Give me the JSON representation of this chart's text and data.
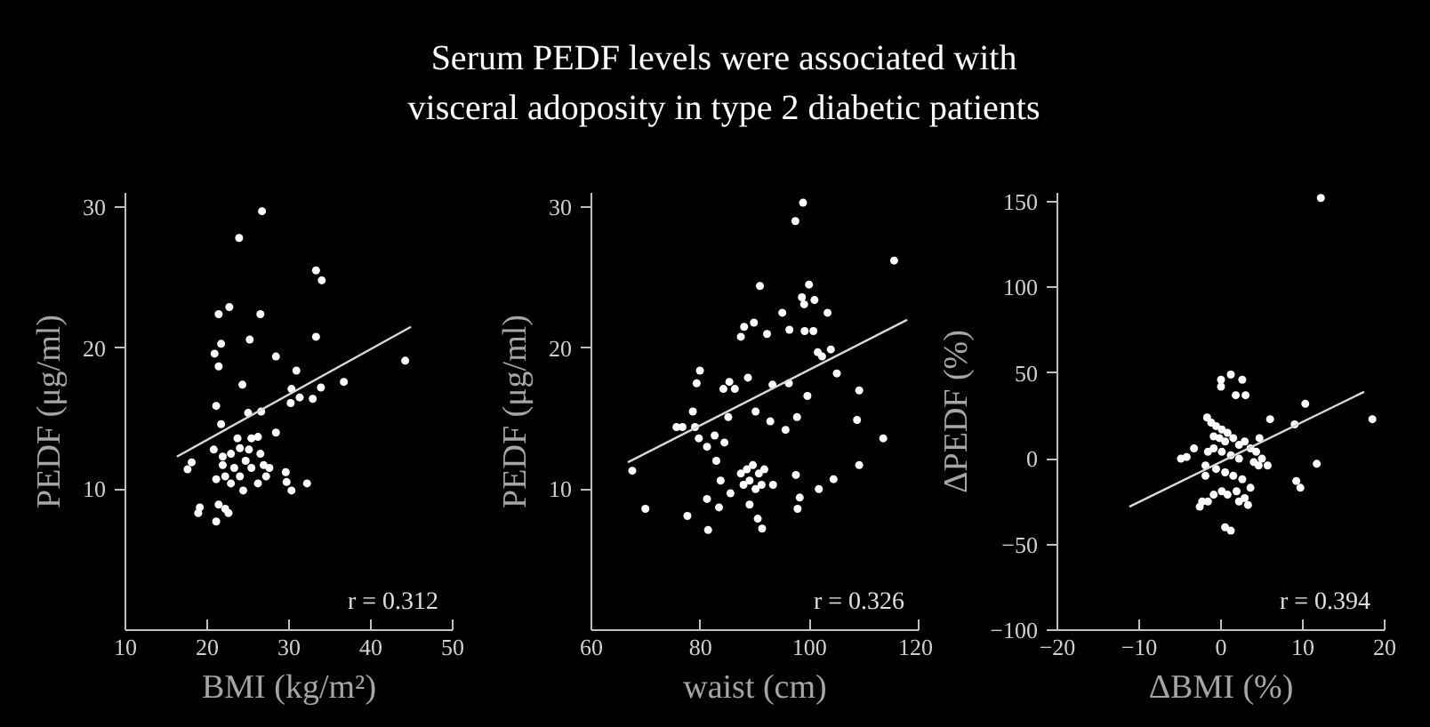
{
  "chart_data": [
    {
      "type": "other",
      "title": "Serum PEDF levels were associated with\nvisceral adoposity in type 2 diabetic patients"
    },
    {
      "type": "scatter",
      "xlabel": "BMI (kg/m²)",
      "ylabel": "PEDF (μg/ml)",
      "annotations": [
        "r = 0.312"
      ],
      "xlim": [
        10,
        50
      ],
      "ylim": [
        0,
        31
      ],
      "xticks": [
        10,
        20,
        30,
        40,
        50
      ],
      "yticks": [
        10,
        20,
        30
      ],
      "series": [
        {
          "marker": "circle",
          "color": "#ffffff",
          "x": [
            26.7,
            23.9,
            33.3,
            34.0,
            21.4,
            22.7,
            26.5,
            33.3,
            25.2,
            21.7,
            20.9,
            21.4,
            28.4,
            30.9,
            24.3,
            30.3,
            31.3,
            32.9,
            33.9,
            36.7,
            44.2,
            30.2,
            21.1,
            25.0,
            26.6,
            21.7,
            28.4,
            17.6,
            18.1,
            20.8,
            21.9,
            22.9,
            24.0,
            25.4,
            26.2,
            26.5,
            24.7,
            23.3,
            22.2,
            21.1,
            24.0,
            25.4,
            26.9,
            27.6,
            24.4,
            22.9,
            26.2,
            27.2,
            21.9,
            25.1,
            23.7,
            29.6,
            29.7,
            30.3,
            32.2,
            19.1,
            18.9,
            21.4,
            22.2,
            22.6,
            21.1
          ],
          "values": [
            29.7,
            27.8,
            25.5,
            24.8,
            22.4,
            22.9,
            22.4,
            20.8,
            20.6,
            20.3,
            19.6,
            18.7,
            19.4,
            18.4,
            17.4,
            17.1,
            16.5,
            16.4,
            17.2,
            17.6,
            19.1,
            16.1,
            15.9,
            15.4,
            15.5,
            14.6,
            14.0,
            11.4,
            11.9,
            12.8,
            12.3,
            12.5,
            12.9,
            13.6,
            13.7,
            12.5,
            12.0,
            11.5,
            10.9,
            10.7,
            10.9,
            11.5,
            11.7,
            11.5,
            9.9,
            10.4,
            10.4,
            10.9,
            11.7,
            12.8,
            13.6,
            11.2,
            10.5,
            9.9,
            10.4,
            8.7,
            8.3,
            8.9,
            8.6,
            8.3,
            7.7
          ]
        },
        {
          "type": "line",
          "color": "#d9d9d9",
          "x": [
            16.3,
            44.9
          ],
          "values": [
            12.3,
            21.5
          ]
        }
      ]
    },
    {
      "type": "scatter",
      "xlabel": "waist (cm)",
      "ylabel": "PEDF (μg/ml)",
      "annotations": [
        "r = 0.326"
      ],
      "xlim": [
        60,
        120
      ],
      "ylim": [
        0,
        31
      ],
      "xticks": [
        60,
        80,
        100,
        120
      ],
      "yticks": [
        10,
        20,
        30
      ],
      "series": [
        {
          "marker": "circle",
          "color": "#ffffff",
          "x": [
            98.8,
            97.4,
            115.5,
            90.9,
            99.9,
            98.6,
            99.0,
            100.9,
            95.0,
            103.3,
            88.0,
            89.8,
            92.2,
            96.3,
            99.1,
            100.7,
            87.4,
            101.5,
            102.3,
            103.9,
            105.0,
            79.9,
            79.3,
            85.3,
            86.3,
            88.7,
            84.2,
            93.2,
            96.2,
            99.6,
            109.1,
            78.6,
            75.6,
            76.7,
            79.0,
            85.1,
            90.1,
            97.7,
            92.8,
            95.6,
            108.7,
            79.7,
            82.6,
            84.4,
            81.2,
            82.9,
            113.5,
            67.5,
            109.1,
            87.4,
            88.5,
            89.6,
            90.7,
            91.7,
            87.9,
            89.0,
            91.2,
            90.1,
            93.3,
            85.5,
            83.7,
            97.5,
            104.4,
            101.7,
            81.2,
            83.4,
            89.0,
            98.2,
            97.8,
            90.5,
            91.3,
            69.9,
            77.6,
            81.4
          ],
          "values": [
            30.3,
            29.0,
            26.2,
            24.4,
            24.5,
            23.6,
            23.1,
            23.4,
            22.5,
            22.5,
            21.5,
            21.8,
            21.0,
            21.3,
            21.2,
            21.2,
            20.8,
            19.7,
            19.4,
            19.9,
            18.2,
            18.4,
            17.5,
            17.6,
            17.1,
            17.9,
            17.1,
            17.4,
            17.5,
            16.6,
            17.0,
            15.5,
            14.4,
            14.4,
            14.4,
            15.1,
            15.5,
            15.1,
            14.8,
            14.2,
            14.9,
            13.6,
            13.8,
            13.3,
            13.0,
            12.0,
            13.6,
            11.3,
            11.7,
            11.1,
            11.4,
            11.7,
            11.1,
            11.4,
            10.3,
            10.6,
            10.3,
            10.0,
            10.3,
            9.7,
            10.6,
            11.0,
            10.7,
            10.0,
            9.3,
            8.7,
            8.9,
            9.4,
            8.6,
            7.9,
            7.2,
            8.6,
            8.1,
            7.1
          ]
        },
        {
          "type": "line",
          "color": "#d9d9d9",
          "x": [
            66.7,
            117.9
          ],
          "values": [
            11.9,
            22.0
          ]
        }
      ]
    },
    {
      "type": "scatter",
      "xlabel": "ΔBMI (%)",
      "ylabel": "ΔPEDF (%)",
      "annotations": [
        "r = 0.394"
      ],
      "xlim": [
        -20,
        20
      ],
      "ylim": [
        -100,
        155
      ],
      "xticks": [
        -20,
        -10,
        0,
        10,
        20
      ],
      "yticks": [
        -100,
        -50,
        0,
        50,
        100,
        150
      ],
      "series": [
        {
          "marker": "circle",
          "color": "#ffffff",
          "x": [
            12.2,
            18.5,
            10.3,
            9.0,
            11.7,
            9.2,
            9.7,
            0.0,
            1.2,
            2.6,
            1.8,
            3.0,
            0.0,
            6.0,
            4.7,
            -1.7,
            -3.3,
            -4.9,
            -4.2,
            -1.2,
            -0.6,
            0.1,
            0.8,
            -0.9,
            -0.2,
            0.5,
            1.5,
            2.2,
            2.9,
            3.6,
            4.3,
            5.0,
            5.7,
            4.6,
            4.0,
            2.2,
            1.2,
            0.1,
            -0.9,
            -1.6,
            -1.9,
            -1.9,
            -0.6,
            0.5,
            1.5,
            2.6,
            3.6,
            2.9,
            1.9,
            0.8,
            0.1,
            -0.9,
            -1.6,
            -2.6,
            -2.3,
            2.2,
            3.3,
            0.5,
            1.2
          ],
          "values": [
            152,
            23,
            32,
            20,
            -3,
            -13,
            -17,
            46,
            49,
            46,
            37,
            37,
            42,
            23,
            12,
            24,
            6,
            0,
            1,
            21,
            19,
            17,
            15,
            13,
            12,
            10,
            12,
            8,
            10,
            6,
            4,
            0,
            -4,
            -4,
            -2,
            0,
            2,
            4,
            6,
            4,
            -4,
            -10,
            -6,
            -8,
            -10,
            -12,
            -17,
            -23,
            -19,
            -21,
            -19,
            -21,
            -25,
            -28,
            -25,
            -25,
            -27,
            -40,
            -42
          ]
        },
        {
          "type": "line",
          "color": "#d9d9d9",
          "x": [
            -11.2,
            17.5
          ],
          "values": [
            -28,
            39
          ]
        }
      ]
    }
  ]
}
